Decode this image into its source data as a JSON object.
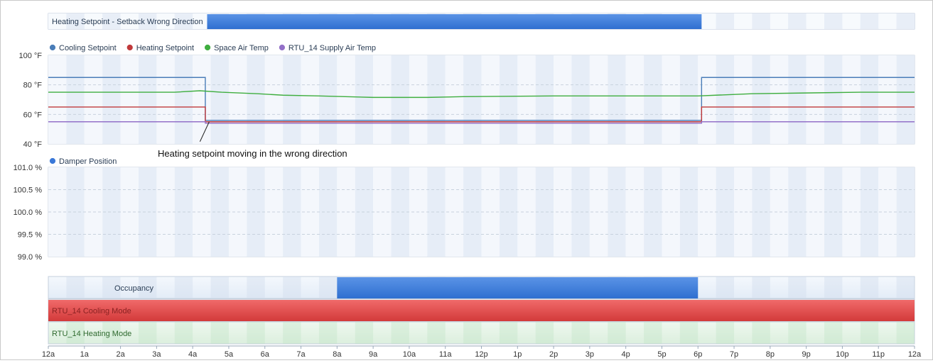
{
  "chart_data": [
    {
      "type": "timeline",
      "title": "Heating Setpoint - Setback Wrong Direction",
      "segments": [
        {
          "start": 4.4,
          "end": 18.1,
          "color": "#3a78d8"
        }
      ]
    },
    {
      "type": "line",
      "legend_placement": "top-left",
      "y_tick_labels": [
        "40 °F",
        "60 °F",
        "80 °F",
        "100 °F"
      ],
      "y_ticks": [
        40,
        60,
        80,
        100
      ],
      "ylim": [
        40,
        100
      ],
      "xlim": [
        0,
        24
      ],
      "series": [
        {
          "name": "Cooling Setpoint",
          "color": "#4a7db8",
          "points": [
            [
              0,
              85
            ],
            [
              4.35,
              85
            ],
            [
              4.35,
              56
            ],
            [
              18.1,
              56
            ],
            [
              18.1,
              85
            ],
            [
              24,
              85
            ]
          ]
        },
        {
          "name": "Heating Setpoint",
          "color": "#c0393b",
          "points": [
            [
              0,
              65
            ],
            [
              4.35,
              65
            ],
            [
              4.35,
              55
            ],
            [
              18.1,
              55
            ],
            [
              18.1,
              65
            ],
            [
              24,
              65
            ]
          ]
        },
        {
          "name": "Space Air Temp",
          "color": "#3fae3f",
          "points": [
            [
              0,
              75
            ],
            [
              3.5,
              75
            ],
            [
              4.2,
              76
            ],
            [
              4.8,
              75
            ],
            [
              5.8,
              74
            ],
            [
              6.5,
              73
            ],
            [
              7.5,
              72.5
            ],
            [
              9,
              71.5
            ],
            [
              10.5,
              71.5
            ],
            [
              11.5,
              72
            ],
            [
              14,
              72.5
            ],
            [
              18,
              72.5
            ],
            [
              18.5,
              73
            ],
            [
              19.5,
              74
            ],
            [
              21,
              74.5
            ],
            [
              22.5,
              75
            ],
            [
              24,
              75
            ]
          ]
        },
        {
          "name": "RTU_14 Supply Air Temp",
          "color": "#9370c8",
          "points": [
            [
              0,
              55
            ],
            [
              4.35,
              55
            ],
            [
              4.35,
              54
            ],
            [
              18.1,
              54
            ],
            [
              18.1,
              55
            ],
            [
              24,
              55
            ]
          ]
        }
      ],
      "annotation": {
        "text": "Heating setpoint moving in the wrong direction",
        "x": 4.3,
        "y": 55
      }
    },
    {
      "type": "line",
      "legend_placement": "top-left",
      "y_tick_labels": [
        "99.0 %",
        "99.5 %",
        "100.0 %",
        "100.5 %",
        "101.0 %"
      ],
      "y_ticks": [
        99.0,
        99.5,
        100.0,
        100.5,
        101.0
      ],
      "ylim": [
        99.0,
        101.0
      ],
      "series": [
        {
          "name": "Damper Position",
          "color": "#3a78d8",
          "points": []
        }
      ]
    },
    {
      "type": "timeline",
      "rows": [
        {
          "name": "Occupancy",
          "segments": [
            {
              "start": 8,
              "end": 18,
              "color": "#3a78d8"
            }
          ]
        },
        {
          "name": "RTU_14 Cooling Mode",
          "segments": [
            {
              "start": 0,
              "end": 24,
              "color": "#e04848"
            }
          ]
        },
        {
          "name": "RTU_14 Heating Mode",
          "segments": []
        }
      ]
    }
  ],
  "x_axis": {
    "ticks": [
      0,
      1,
      2,
      3,
      4,
      5,
      6,
      7,
      8,
      9,
      10,
      11,
      12,
      13,
      14,
      15,
      16,
      17,
      18,
      19,
      20,
      21,
      22,
      23,
      24
    ],
    "tick_labels": [
      "12a",
      "1a",
      "2a",
      "3a",
      "4a",
      "5a",
      "6a",
      "7a",
      "8a",
      "9a",
      "10a",
      "11a",
      "12p",
      "1p",
      "2p",
      "3p",
      "4p",
      "5p",
      "6p",
      "7p",
      "8p",
      "9p",
      "10p",
      "11p",
      "12a"
    ]
  }
}
